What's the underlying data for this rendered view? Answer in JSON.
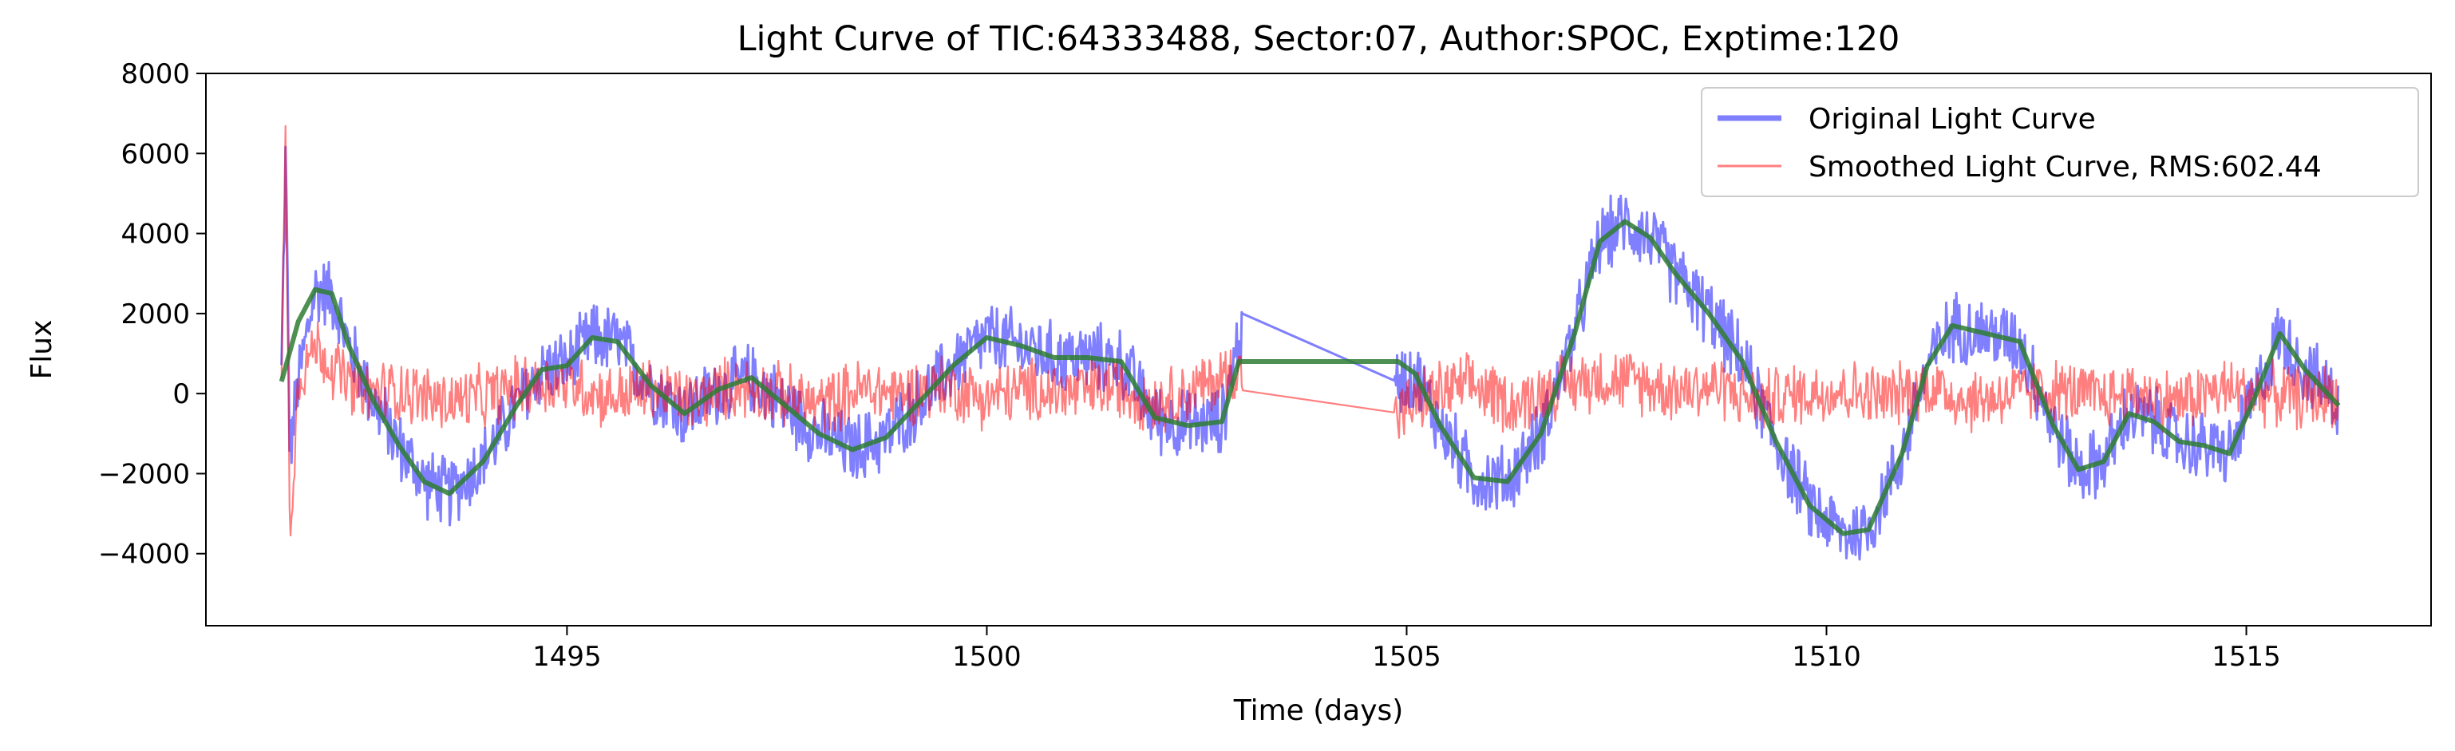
{
  "chart_data": {
    "type": "line",
    "title": "Light Curve of TIC:64333488, Sector:07, Author:SPOC, Exptime:120",
    "xlabel": "Time (days)",
    "ylabel": "Flux",
    "xlim": [
      1490.7,
      1517.2
    ],
    "ylim": [
      -5800,
      8000
    ],
    "xticks": [
      1495,
      1500,
      1505,
      1510,
      1515
    ],
    "yticks": [
      -4000,
      -2000,
      0,
      2000,
      4000,
      6000,
      8000
    ],
    "grid": false,
    "legend_position": "top-right",
    "series": [
      {
        "name": "Original Light Curve",
        "color": "#0000ff",
        "opacity": 0.5,
        "noise_amplitude": 1000,
        "x": [
          1491.6,
          1491.65,
          1491.7,
          1491.8,
          1492.0,
          1492.2,
          1492.4,
          1492.7,
          1493.0,
          1493.3,
          1493.6,
          1494.0,
          1494.4,
          1494.7,
          1495.0,
          1495.3,
          1495.6,
          1496.0,
          1496.4,
          1496.8,
          1497.2,
          1497.6,
          1498.0,
          1498.4,
          1498.8,
          1499.2,
          1499.6,
          1500.0,
          1500.4,
          1500.8,
          1501.2,
          1501.6,
          1502.0,
          1502.4,
          1502.8,
          1503.0,
          1504.9,
          1505.1,
          1505.4,
          1505.8,
          1506.2,
          1506.6,
          1507.0,
          1507.3,
          1507.6,
          1507.9,
          1508.2,
          1508.6,
          1509.0,
          1509.4,
          1509.8,
          1510.2,
          1510.5,
          1510.9,
          1511.2,
          1511.5,
          1511.9,
          1512.3,
          1512.7,
          1513.0,
          1513.3,
          1513.6,
          1513.9,
          1514.2,
          1514.5,
          1514.8,
          1515.1,
          1515.4,
          1515.7,
          1516.1
        ],
        "y": [
          500,
          6000,
          -1500,
          300,
          2600,
          2500,
          1200,
          -200,
          -1300,
          -2200,
          -2500,
          -1700,
          -300,
          600,
          700,
          1400,
          1300,
          200,
          -500,
          100,
          400,
          -300,
          -1000,
          -1400,
          -1100,
          -200,
          700,
          1400,
          1200,
          900,
          900,
          800,
          -600,
          -800,
          -700,
          1400,
          300,
          500,
          -800,
          -2100,
          -2200,
          -1000,
          1500,
          3800,
          4300,
          3900,
          3000,
          2000,
          800,
          -1200,
          -2800,
          -3500,
          -3400,
          -1500,
          700,
          1700,
          1500,
          1300,
          -800,
          -1900,
          -1700,
          -500,
          -700,
          -1200,
          -1300,
          -1500,
          -100,
          1500,
          600,
          -200
        ]
      },
      {
        "name": "Smoothed Light Curve, RMS:602.44",
        "color": "#ff0000",
        "opacity": 0.5,
        "noise_amplitude": 900,
        "x": [
          1491.6,
          1491.65,
          1491.7,
          1491.8,
          1492.0,
          1492.5,
          1493.0,
          1493.5,
          1494.0,
          1494.5,
          1495.0,
          1495.5,
          1496.0,
          1496.5,
          1497.0,
          1497.5,
          1498.0,
          1498.5,
          1499.0,
          1499.5,
          1500.0,
          1500.5,
          1501.0,
          1501.5,
          1502.0,
          1502.5,
          1503.0,
          1504.9,
          1505.3,
          1505.8,
          1506.3,
          1506.8,
          1507.3,
          1507.7,
          1508.2,
          1508.7,
          1509.2,
          1509.7,
          1510.2,
          1510.7,
          1511.2,
          1511.7,
          1512.2,
          1512.7,
          1513.2,
          1513.7,
          1514.2,
          1514.7,
          1515.2,
          1515.7,
          1516.1
        ],
        "y": [
          200,
          6500,
          -3500,
          400,
          1200,
          0,
          100,
          -200,
          -100,
          200,
          300,
          -100,
          100,
          -200,
          200,
          0,
          -300,
          100,
          0,
          200,
          -100,
          100,
          0,
          200,
          -200,
          100,
          600,
          -500,
          0,
          200,
          -300,
          200,
          400,
          300,
          100,
          200,
          -200,
          0,
          100,
          -100,
          200,
          -200,
          0,
          100,
          -100,
          0,
          -200,
          100,
          0,
          -100,
          0
        ]
      },
      {
        "name": "",
        "color": "#2e7d32",
        "opacity": 0.85,
        "noise_amplitude": 0,
        "x": [
          1491.6,
          1491.8,
          1492.0,
          1492.2,
          1492.4,
          1492.7,
          1493.0,
          1493.3,
          1493.6,
          1494.0,
          1494.4,
          1494.7,
          1495.0,
          1495.3,
          1495.6,
          1496.0,
          1496.4,
          1496.8,
          1497.2,
          1497.6,
          1498.0,
          1498.4,
          1498.8,
          1499.2,
          1499.6,
          1500.0,
          1500.4,
          1500.8,
          1501.2,
          1501.6,
          1502.0,
          1502.4,
          1502.8,
          1503.0,
          1504.9,
          1505.1,
          1505.4,
          1505.8,
          1506.2,
          1506.6,
          1507.0,
          1507.3,
          1507.6,
          1507.9,
          1508.2,
          1508.6,
          1509.0,
          1509.4,
          1509.8,
          1510.2,
          1510.5,
          1510.9,
          1511.2,
          1511.5,
          1511.9,
          1512.3,
          1512.7,
          1513.0,
          1513.3,
          1513.6,
          1513.9,
          1514.2,
          1514.5,
          1514.8,
          1515.1,
          1515.4,
          1515.7,
          1516.1
        ],
        "y": [
          300,
          1800,
          2600,
          2500,
          1200,
          -200,
          -1300,
          -2200,
          -2500,
          -1700,
          -300,
          600,
          700,
          1400,
          1300,
          200,
          -500,
          100,
          400,
          -300,
          -1000,
          -1400,
          -1100,
          -200,
          700,
          1400,
          1200,
          900,
          900,
          800,
          -600,
          -800,
          -700,
          800,
          800,
          500,
          -800,
          -2100,
          -2200,
          -1000,
          1500,
          3800,
          4300,
          3900,
          3000,
          2000,
          800,
          -1200,
          -2800,
          -3500,
          -3400,
          -1500,
          700,
          1700,
          1500,
          1300,
          -800,
          -1900,
          -1700,
          -500,
          -700,
          -1200,
          -1300,
          -1500,
          -100,
          1500,
          600,
          -300
        ]
      }
    ]
  }
}
